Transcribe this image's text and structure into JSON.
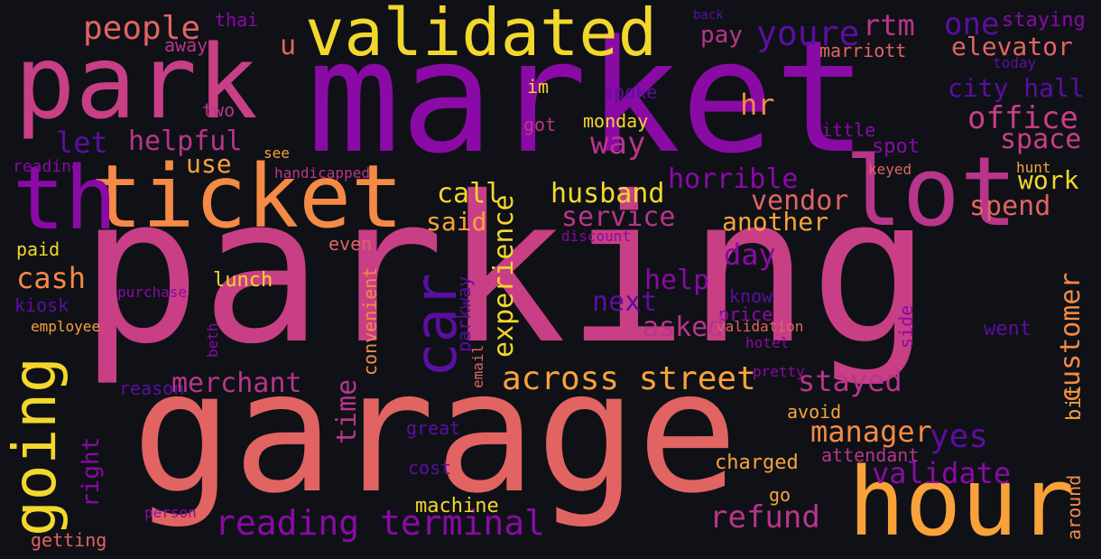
{
  "colors": {
    "background": "#0f1117",
    "purple": "#8a0aa5",
    "deep_purple": "#5a0fa0",
    "magenta": "#b8358a",
    "pink": "#c83f85",
    "salmon": "#e16462",
    "orange": "#f48a45",
    "amber": "#f9a23a",
    "yellow": "#f3d72c"
  },
  "words": [
    {
      "id": "parking",
      "text": "parking"
    },
    {
      "id": "market",
      "text": "market"
    },
    {
      "id": "garage",
      "text": "garage"
    },
    {
      "id": "park",
      "text": "park"
    },
    {
      "id": "ticket",
      "text": "ticket"
    },
    {
      "id": "lot",
      "text": "lot"
    },
    {
      "id": "hour",
      "text": "hour"
    },
    {
      "id": "validated",
      "text": "validated"
    },
    {
      "id": "th",
      "text": "th"
    },
    {
      "id": "car",
      "text": "car"
    },
    {
      "id": "going",
      "text": "going"
    },
    {
      "id": "across-street",
      "text": "across street"
    },
    {
      "id": "reading-terminal",
      "text": "reading terminal"
    },
    {
      "id": "people",
      "text": "people"
    },
    {
      "id": "thai",
      "text": "thai"
    },
    {
      "id": "away",
      "text": "away"
    },
    {
      "id": "u",
      "text": "u"
    },
    {
      "id": "back",
      "text": "back"
    },
    {
      "id": "pay",
      "text": "pay"
    },
    {
      "id": "youre",
      "text": "youre"
    },
    {
      "id": "rtm",
      "text": "rtm"
    },
    {
      "id": "one",
      "text": "one"
    },
    {
      "id": "staying",
      "text": "staying"
    },
    {
      "id": "elevator",
      "text": "elevator"
    },
    {
      "id": "marriott",
      "text": "marriott"
    },
    {
      "id": "today",
      "text": "today"
    },
    {
      "id": "im",
      "text": "im"
    },
    {
      "id": "spoke",
      "text": "spoke"
    },
    {
      "id": "city-hall",
      "text": "city hall"
    },
    {
      "id": "two",
      "text": "two"
    },
    {
      "id": "hr",
      "text": "hr"
    },
    {
      "id": "office",
      "text": "office"
    },
    {
      "id": "got",
      "text": "got"
    },
    {
      "id": "monday",
      "text": "monday"
    },
    {
      "id": "little",
      "text": "little"
    },
    {
      "id": "space",
      "text": "space"
    },
    {
      "id": "let",
      "text": "let"
    },
    {
      "id": "helpful",
      "text": "helpful"
    },
    {
      "id": "way",
      "text": "way"
    },
    {
      "id": "spot",
      "text": "spot"
    },
    {
      "id": "see",
      "text": "see"
    },
    {
      "id": "use",
      "text": "use"
    },
    {
      "id": "reading",
      "text": "reading"
    },
    {
      "id": "handicapped",
      "text": "handicapped"
    },
    {
      "id": "keyed",
      "text": "keyed"
    },
    {
      "id": "hunt",
      "text": "hunt"
    },
    {
      "id": "horrible",
      "text": "horrible"
    },
    {
      "id": "work",
      "text": "work"
    },
    {
      "id": "call",
      "text": "call"
    },
    {
      "id": "husband",
      "text": "husband"
    },
    {
      "id": "vendor",
      "text": "vendor"
    },
    {
      "id": "spend",
      "text": "spend"
    },
    {
      "id": "said",
      "text": "said"
    },
    {
      "id": "service",
      "text": "service"
    },
    {
      "id": "another",
      "text": "another"
    },
    {
      "id": "paid",
      "text": "paid"
    },
    {
      "id": "even",
      "text": "even"
    },
    {
      "id": "discount",
      "text": "discount"
    },
    {
      "id": "day",
      "text": "day"
    },
    {
      "id": "cash",
      "text": "cash"
    },
    {
      "id": "lunch",
      "text": "lunch"
    },
    {
      "id": "help",
      "text": "help"
    },
    {
      "id": "purchase",
      "text": "purchase"
    },
    {
      "id": "next",
      "text": "next"
    },
    {
      "id": "know",
      "text": "know"
    },
    {
      "id": "kiosk",
      "text": "kiosk"
    },
    {
      "id": "price",
      "text": "price"
    },
    {
      "id": "asked",
      "text": "asked"
    },
    {
      "id": "validation",
      "text": "validation"
    },
    {
      "id": "employee",
      "text": "employee"
    },
    {
      "id": "hotel",
      "text": "hotel"
    },
    {
      "id": "went",
      "text": "went"
    },
    {
      "id": "pretty",
      "text": "pretty"
    },
    {
      "id": "stayed",
      "text": "stayed"
    },
    {
      "id": "reason",
      "text": "reason"
    },
    {
      "id": "merchant",
      "text": "merchant"
    },
    {
      "id": "avoid",
      "text": "avoid"
    },
    {
      "id": "great",
      "text": "great"
    },
    {
      "id": "manager",
      "text": "manager"
    },
    {
      "id": "yes",
      "text": "yes"
    },
    {
      "id": "attendant",
      "text": "attendant"
    },
    {
      "id": "charged",
      "text": "charged"
    },
    {
      "id": "cost",
      "text": "cost"
    },
    {
      "id": "validate",
      "text": "validate"
    },
    {
      "id": "go",
      "text": "go"
    },
    {
      "id": "machine",
      "text": "machine"
    },
    {
      "id": "person",
      "text": "person"
    },
    {
      "id": "refund",
      "text": "refund"
    },
    {
      "id": "getting",
      "text": "getting"
    },
    {
      "id": "side",
      "text": "side"
    },
    {
      "id": "customer",
      "text": "customer"
    },
    {
      "id": "experience",
      "text": "experience"
    },
    {
      "id": "parkway",
      "text": "parkway"
    },
    {
      "id": "beth",
      "text": "beth"
    },
    {
      "id": "convenient",
      "text": "convenient"
    },
    {
      "id": "email",
      "text": "email"
    },
    {
      "id": "time",
      "text": "time"
    },
    {
      "id": "bit",
      "text": "bit"
    },
    {
      "id": "right",
      "text": "right"
    },
    {
      "id": "around",
      "text": "around"
    }
  ]
}
